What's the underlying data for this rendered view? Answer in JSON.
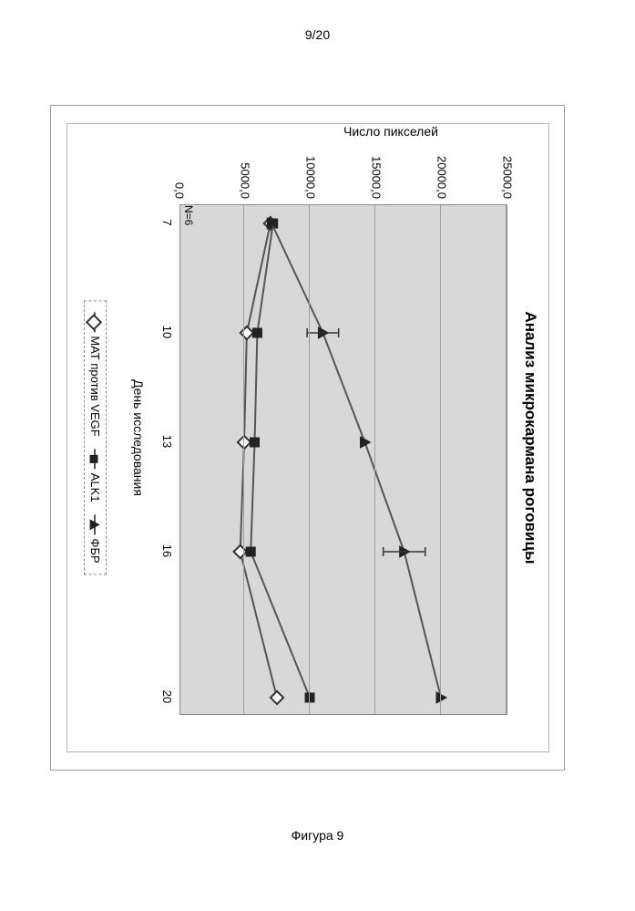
{
  "page_number": "9/20",
  "figure_caption": "Фигура 9",
  "chart": {
    "type": "line",
    "title": "Анализ микрокармана роговицы",
    "xlabel": "День исследования",
    "ylabel": "Число пикселей",
    "n_label": "N=6",
    "xlim": [
      7,
      20
    ],
    "ylim": [
      0,
      25000
    ],
    "ytick_step": 5000,
    "yticks": [
      "0,0",
      "5000,0",
      "10000,0",
      "15000,0",
      "20000,0",
      "25000,0"
    ],
    "xticks": [
      7,
      10,
      13,
      16,
      20
    ],
    "title_fontsize": 17,
    "label_fontsize": 14,
    "tick_fontsize": 13,
    "background_color": "#ffffff",
    "plot_background": "#d8d8d8",
    "grid_color": "#9e9e9e",
    "axis_color": "#8a8a8a",
    "line_width": 2,
    "series": [
      {
        "name": "МАТ против VEGF",
        "legend_label": "МАТ против VEGF",
        "marker": "diamond",
        "marker_fill": "#ffffff",
        "marker_stroke": "#333333",
        "color": "#555555",
        "x": [
          7,
          10,
          13,
          16,
          20
        ],
        "y": [
          7000,
          5200,
          5000,
          4700,
          7500
        ],
        "error_x": [],
        "error_y": []
      },
      {
        "name": "ALK1",
        "legend_label": "ALK1",
        "marker": "square",
        "marker_fill": "#222222",
        "marker_stroke": "#222222",
        "color": "#555555",
        "x": [
          7,
          10,
          13,
          16,
          20
        ],
        "y": [
          7200,
          6000,
          5800,
          5500,
          10000
        ],
        "error_x": [],
        "error_y": []
      },
      {
        "name": "ФБР",
        "legend_label": "ФБР",
        "marker": "triangle",
        "marker_fill": "#222222",
        "marker_stroke": "#222222",
        "color": "#555555",
        "x": [
          7,
          10,
          13,
          16,
          20
        ],
        "y": [
          7100,
          11000,
          14200,
          17200,
          20000
        ],
        "error_x": [
          10,
          16
        ],
        "error_y": [
          1200,
          1600
        ]
      }
    ]
  }
}
